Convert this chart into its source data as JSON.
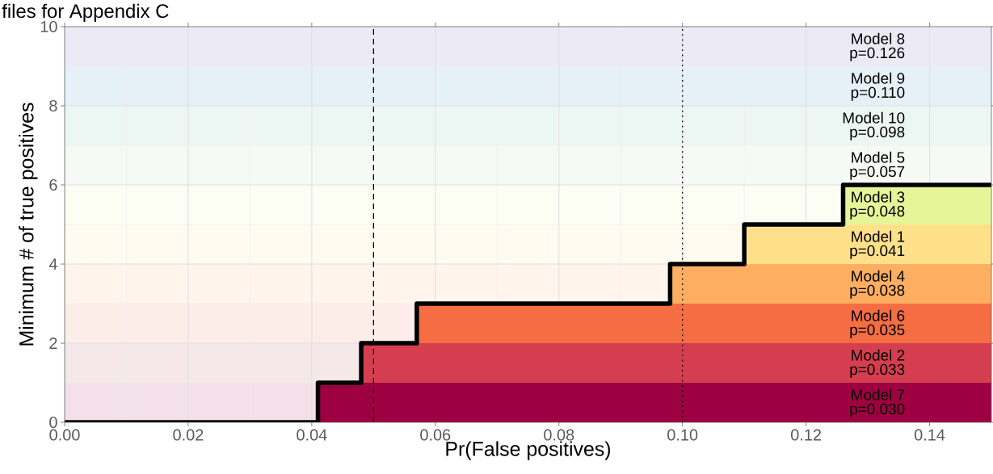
{
  "chart_data": {
    "type": "step",
    "title": "files for Appendix C",
    "xlabel": "Pr(False positives)",
    "ylabel": "Minimum # of true positives",
    "xlim": [
      0,
      0.15
    ],
    "ylim": [
      0,
      10
    ],
    "xticks": [
      {
        "value": 0,
        "label": "0.00"
      },
      {
        "value": 0.02,
        "label": "0.02"
      },
      {
        "value": 0.04,
        "label": "0.04"
      },
      {
        "value": 0.06,
        "label": "0.06"
      },
      {
        "value": 0.08,
        "label": "0.08"
      },
      {
        "value": 0.1,
        "label": "0.10"
      },
      {
        "value": 0.12,
        "label": "0.12"
      },
      {
        "value": 0.14,
        "label": "0.14"
      }
    ],
    "yticks": [
      0,
      2,
      4,
      6,
      8,
      10
    ],
    "grid": true,
    "bands": [
      {
        "axis": "y",
        "from": 0,
        "to": 1,
        "color": "#F3E0E8"
      },
      {
        "axis": "y",
        "from": 1,
        "to": 2,
        "color": "#F5E8E9"
      },
      {
        "axis": "y",
        "from": 2,
        "to": 3,
        "color": "#FDEDE8"
      },
      {
        "axis": "y",
        "from": 3,
        "to": 4,
        "color": "#FFF5EC"
      },
      {
        "axis": "y",
        "from": 4,
        "to": 5,
        "color": "#FFFBF1"
      },
      {
        "axis": "y",
        "from": 5,
        "to": 6,
        "color": "#FCFEF3"
      },
      {
        "axis": "y",
        "from": 6,
        "to": 7,
        "color": "#F5FBF4"
      },
      {
        "axis": "y",
        "from": 7,
        "to": 8,
        "color": "#ECF7F4"
      },
      {
        "axis": "y",
        "from": 8,
        "to": 9,
        "color": "#E6F0F7"
      },
      {
        "axis": "y",
        "from": 9,
        "to": 10,
        "color": "#ECEAF4"
      }
    ],
    "series": [
      {
        "type": "area",
        "x": [
          0.126,
          0.15
        ],
        "values": [
          6,
          6
        ],
        "color": "#E6F598"
      },
      {
        "type": "area",
        "x": [
          0.11,
          0.15
        ],
        "values": [
          5,
          5
        ],
        "color": "#FEE08B"
      },
      {
        "type": "area",
        "x": [
          0.098,
          0.15
        ],
        "values": [
          4,
          4
        ],
        "color": "#FDAE61"
      },
      {
        "type": "area",
        "x": [
          0.057,
          0.15
        ],
        "values": [
          3,
          3
        ],
        "color": "#F46D43"
      },
      {
        "type": "area",
        "x": [
          0.048,
          0.15
        ],
        "values": [
          2,
          2
        ],
        "color": "#D53E4F"
      },
      {
        "type": "area",
        "x": [
          0.041,
          0.15
        ],
        "values": [
          1,
          1
        ],
        "color": "#9E0142"
      },
      {
        "x": [
          0,
          0.041,
          0.048,
          0.057,
          0.098,
          0.11,
          0.126,
          0.15
        ],
        "values": [
          0,
          1,
          2,
          3,
          4,
          5,
          6,
          6
        ],
        "color": "#000000"
      }
    ],
    "ref_lines": [
      {
        "axis": "x",
        "value": 0.05,
        "line_style": "dashed",
        "color": "#000000"
      },
      {
        "axis": "x",
        "value": 0.1,
        "line_style": "dotted",
        "color": "#000000"
      }
    ],
    "annotations": [
      "Model 7",
      "p=0.030",
      "Model 2",
      "p=0.033",
      "Model 6",
      "p=0.035",
      "Model 4",
      "p=0.038",
      "Model 1",
      "p=0.041",
      "Model 3",
      "p=0.048",
      "Model 5",
      "p=0.057",
      "Model 10",
      "p=0.098",
      "Model 9",
      "p=0.110",
      "Model 8",
      "p=0.126"
    ]
  }
}
